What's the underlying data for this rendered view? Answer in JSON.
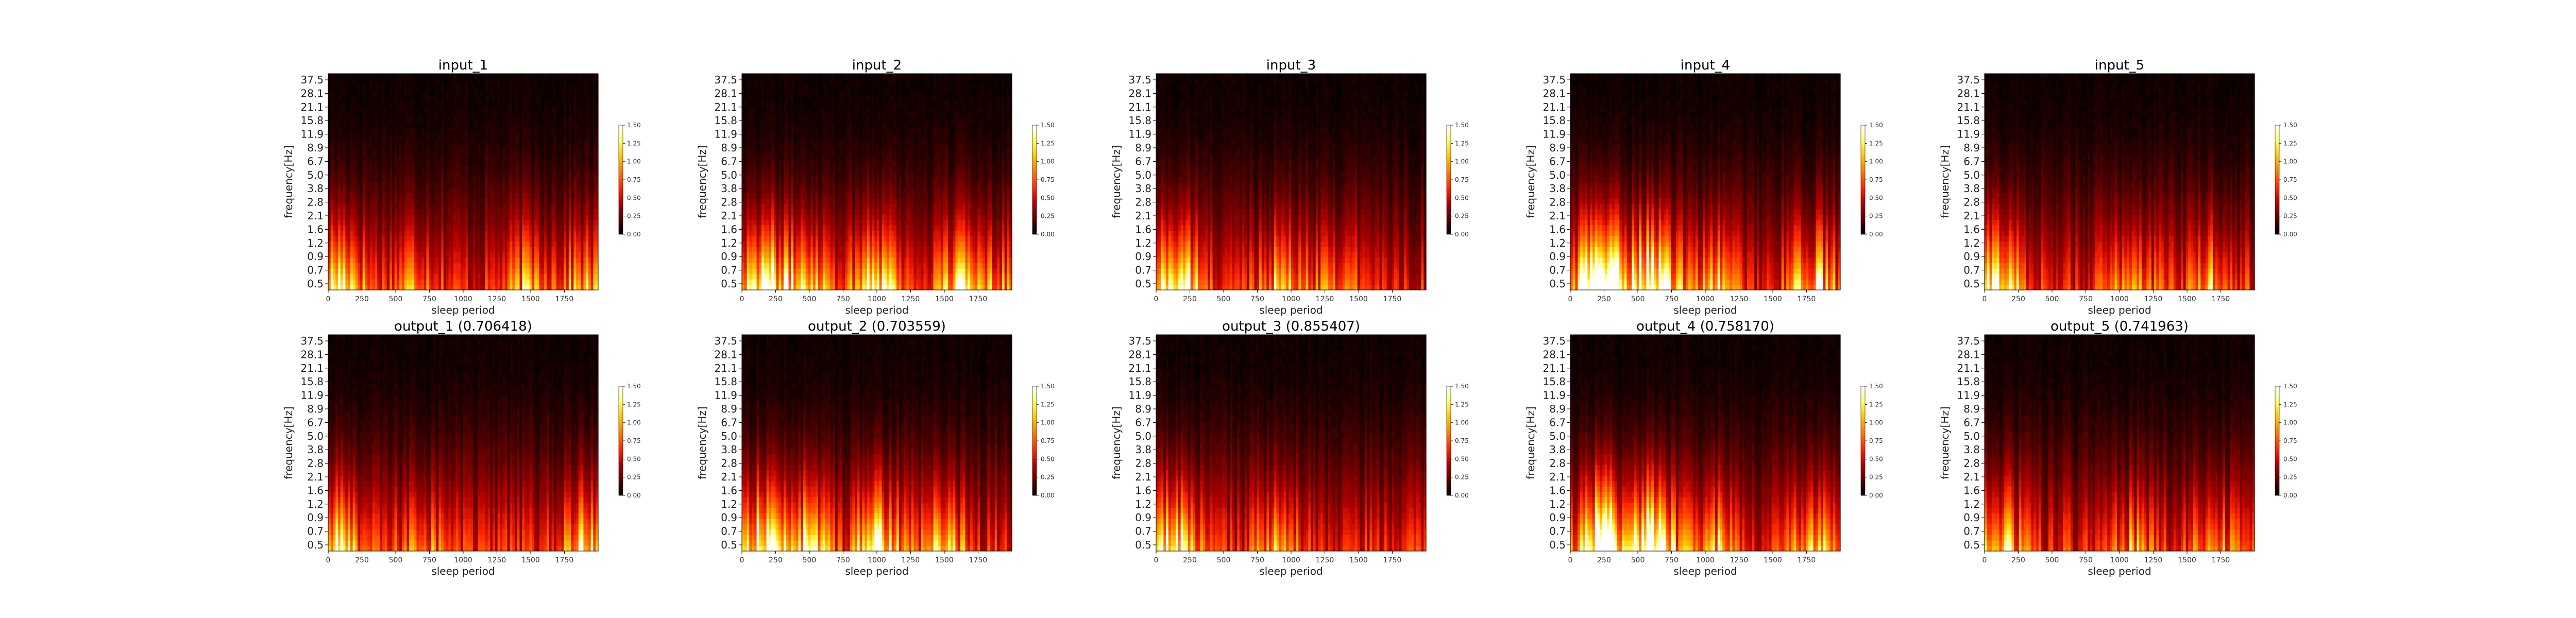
{
  "figure": {
    "colorbar_ticks": [
      "0.00",
      "0.25",
      "0.50",
      "0.75",
      "1.00",
      "1.25",
      "1.50"
    ],
    "colormap": [
      "#000000",
      "#5a0000",
      "#b30000",
      "#ff2a00",
      "#ff7a00",
      "#ffc400",
      "#ffff66",
      "#ffffff"
    ]
  },
  "chart_data": [
    {
      "type": "heatmap",
      "panel": "input_1",
      "title": "input_1",
      "xlabel": "sleep period",
      "ylabel": "frequency[Hz]",
      "xticks": [
        "0",
        "250",
        "500",
        "750",
        "1000",
        "1250",
        "1500",
        "1750"
      ],
      "yticks": [
        "0.5",
        "0.7",
        "0.9",
        "1.2",
        "1.6",
        "2.1",
        "2.8",
        "3.8",
        "5.0",
        "6.7",
        "8.9",
        "11.9",
        "15.8",
        "21.1",
        "28.1",
        "37.5"
      ],
      "xlim": [
        0,
        2000
      ],
      "clim": [
        0,
        1.5
      ],
      "hotspots": [
        [
          100,
          0.9
        ],
        [
          650,
          0.45
        ],
        [
          1500,
          0.5
        ],
        [
          1900,
          0.45
        ]
      ]
    },
    {
      "type": "heatmap",
      "panel": "input_2",
      "title": "input_2",
      "xlabel": "sleep period",
      "ylabel": "frequency[Hz]",
      "xticks": [
        "0",
        "250",
        "500",
        "750",
        "1000",
        "1250",
        "1500",
        "1750"
      ],
      "yticks": [
        "0.5",
        "0.7",
        "0.9",
        "1.2",
        "1.6",
        "2.1",
        "2.8",
        "3.8",
        "5.0",
        "6.7",
        "8.9",
        "11.9",
        "15.8",
        "21.1",
        "28.1",
        "37.5"
      ],
      "xlim": [
        0,
        2000
      ],
      "clim": [
        0,
        1.5
      ],
      "hotspots": [
        [
          150,
          1.1
        ],
        [
          500,
          0.8
        ],
        [
          1000,
          1.0
        ],
        [
          1600,
          0.6
        ],
        [
          1850,
          0.5
        ]
      ]
    },
    {
      "type": "heatmap",
      "panel": "input_3",
      "title": "input_3",
      "xlabel": "sleep period",
      "ylabel": "frequency[Hz]",
      "xticks": [
        "0",
        "250",
        "500",
        "750",
        "1000",
        "1250",
        "1500",
        "1750"
      ],
      "yticks": [
        "0.5",
        "0.7",
        "0.9",
        "1.2",
        "1.6",
        "2.1",
        "2.8",
        "3.8",
        "5.0",
        "6.7",
        "8.9",
        "11.9",
        "15.8",
        "21.1",
        "28.1",
        "37.5"
      ],
      "xlim": [
        0,
        2000
      ],
      "clim": [
        0,
        1.5
      ],
      "hotspots": [
        [
          150,
          1.0
        ],
        [
          900,
          0.5
        ],
        [
          1300,
          0.4
        ]
      ]
    },
    {
      "type": "heatmap",
      "panel": "input_4",
      "title": "input_4",
      "xlabel": "sleep period",
      "ylabel": "frequency[Hz]",
      "xticks": [
        "0",
        "250",
        "500",
        "750",
        "1000",
        "1250",
        "1500",
        "1750"
      ],
      "yticks": [
        "0.5",
        "0.7",
        "0.9",
        "1.2",
        "1.6",
        "2.1",
        "2.8",
        "3.8",
        "5.0",
        "6.7",
        "8.9",
        "11.9",
        "15.8",
        "21.1",
        "28.1",
        "37.5"
      ],
      "xlim": [
        0,
        2000
      ],
      "clim": [
        0,
        1.5
      ],
      "hotspots": [
        [
          220,
          1.6
        ],
        [
          600,
          1.4
        ],
        [
          1050,
          0.6
        ],
        [
          1800,
          0.7
        ]
      ]
    },
    {
      "type": "heatmap",
      "panel": "input_5",
      "title": "input_5",
      "xlabel": "sleep period",
      "ylabel": "frequency[Hz]",
      "xticks": [
        "0",
        "250",
        "500",
        "750",
        "1000",
        "1250",
        "1500",
        "1750"
      ],
      "yticks": [
        "0.5",
        "0.7",
        "0.9",
        "1.2",
        "1.6",
        "2.1",
        "2.8",
        "3.8",
        "5.0",
        "6.7",
        "8.9",
        "11.9",
        "15.8",
        "21.1",
        "28.1",
        "37.5"
      ],
      "xlim": [
        0,
        2000
      ],
      "clim": [
        0,
        1.5
      ],
      "hotspots": [
        [
          120,
          0.9
        ],
        [
          1100,
          0.5
        ],
        [
          1700,
          0.5
        ]
      ]
    },
    {
      "type": "heatmap",
      "panel": "output_1",
      "title": "output_1 (0.706418)",
      "xlabel": "sleep period",
      "ylabel": "frequency[Hz]",
      "xticks": [
        "0",
        "250",
        "500",
        "750",
        "1000",
        "1250",
        "1500",
        "1750"
      ],
      "yticks": [
        "0.5",
        "0.7",
        "0.9",
        "1.2",
        "1.6",
        "2.1",
        "2.8",
        "3.8",
        "5.0",
        "6.7",
        "8.9",
        "11.9",
        "15.8",
        "21.1",
        "28.1",
        "37.5"
      ],
      "xlim": [
        0,
        2000
      ],
      "clim": [
        0,
        1.5
      ],
      "hotspots": [
        [
          100,
          0.7
        ],
        [
          700,
          0.4
        ],
        [
          1900,
          0.6
        ]
      ]
    },
    {
      "type": "heatmap",
      "panel": "output_2",
      "title": "output_2 (0.703559)",
      "xlabel": "sleep period",
      "ylabel": "frequency[Hz]",
      "xticks": [
        "0",
        "250",
        "500",
        "750",
        "1000",
        "1250",
        "1500",
        "1750"
      ],
      "yticks": [
        "0.5",
        "0.7",
        "0.9",
        "1.2",
        "1.6",
        "2.1",
        "2.8",
        "3.8",
        "5.0",
        "6.7",
        "8.9",
        "11.9",
        "15.8",
        "21.1",
        "28.1",
        "37.5"
      ],
      "xlim": [
        0,
        2000
      ],
      "clim": [
        0,
        1.5
      ],
      "hotspots": [
        [
          150,
          1.0
        ],
        [
          500,
          0.8
        ],
        [
          1000,
          0.9
        ],
        [
          1500,
          0.6
        ]
      ]
    },
    {
      "type": "heatmap",
      "panel": "output_3",
      "title": "output_3 (0.855407)",
      "xlabel": "sleep period",
      "ylabel": "frequency[Hz]",
      "xticks": [
        "0",
        "250",
        "500",
        "750",
        "1000",
        "1250",
        "1500",
        "1750"
      ],
      "yticks": [
        "0.5",
        "0.7",
        "0.9",
        "1.2",
        "1.6",
        "2.1",
        "2.8",
        "3.8",
        "5.0",
        "6.7",
        "8.9",
        "11.9",
        "15.8",
        "21.1",
        "28.1",
        "37.5"
      ],
      "xlim": [
        0,
        2000
      ],
      "clim": [
        0,
        1.5
      ],
      "hotspots": [
        [
          150,
          0.9
        ],
        [
          900,
          0.4
        ]
      ]
    },
    {
      "type": "heatmap",
      "panel": "output_4",
      "title": "output_4 (0.758170)",
      "xlabel": "sleep period",
      "ylabel": "frequency[Hz]",
      "xticks": [
        "0",
        "250",
        "500",
        "750",
        "1000",
        "1250",
        "1500",
        "1750"
      ],
      "yticks": [
        "0.5",
        "0.7",
        "0.9",
        "1.2",
        "1.6",
        "2.1",
        "2.8",
        "3.8",
        "5.0",
        "6.7",
        "8.9",
        "11.9",
        "15.8",
        "21.1",
        "28.1",
        "37.5"
      ],
      "xlim": [
        0,
        2000
      ],
      "clim": [
        0,
        1.5
      ],
      "hotspots": [
        [
          230,
          1.5
        ],
        [
          600,
          1.3
        ],
        [
          1050,
          0.6
        ],
        [
          1800,
          0.6
        ]
      ]
    },
    {
      "type": "heatmap",
      "panel": "output_5",
      "title": "output_5 (0.741963)",
      "xlabel": "sleep period",
      "ylabel": "frequency[Hz]",
      "xticks": [
        "0",
        "250",
        "500",
        "750",
        "1000",
        "1250",
        "1500",
        "1750"
      ],
      "yticks": [
        "0.5",
        "0.7",
        "0.9",
        "1.2",
        "1.6",
        "2.1",
        "2.8",
        "3.8",
        "5.0",
        "6.7",
        "8.9",
        "11.9",
        "15.8",
        "21.1",
        "28.1",
        "37.5"
      ],
      "xlim": [
        0,
        2000
      ],
      "clim": [
        0,
        1.5
      ],
      "hotspots": [
        [
          120,
          0.6
        ],
        [
          1100,
          0.4
        ],
        [
          1700,
          0.4
        ]
      ]
    }
  ]
}
